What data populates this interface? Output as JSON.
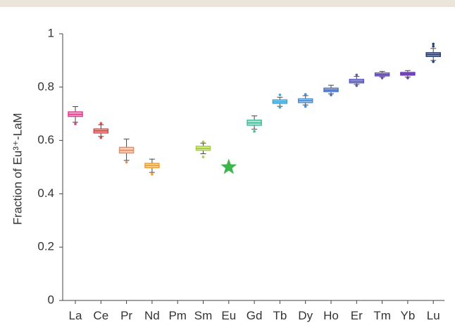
{
  "chart_data": {
    "type": "box",
    "title": "",
    "xlabel": "",
    "ylabel": "Fraction of Eu³⁺-LaM",
    "ylim": [
      0,
      1
    ],
    "yticks": [
      "0",
      "0.2",
      "0.4",
      "0.6",
      "0.8",
      "1"
    ],
    "categories": [
      "La",
      "Ce",
      "Pr",
      "Nd",
      "Pm",
      "Sm",
      "Eu",
      "Gd",
      "Tb",
      "Dy",
      "Ho",
      "Er",
      "Tm",
      "Yb",
      "Lu"
    ],
    "boxes": [
      {
        "category": "La",
        "min": 0.668,
        "q1": 0.69,
        "median": 0.698,
        "q3": 0.707,
        "max": 0.727,
        "outliers": [
          0.662
        ],
        "color": "#e8388c"
      },
      {
        "category": "Ce",
        "min": 0.615,
        "q1": 0.628,
        "median": 0.636,
        "q3": 0.643,
        "max": 0.659,
        "outliers": [
          0.664,
          0.61
        ],
        "color": "#e04848"
      },
      {
        "category": "Pr",
        "min": 0.525,
        "q1": 0.553,
        "median": 0.563,
        "q3": 0.574,
        "max": 0.605,
        "outliers": [
          0.518
        ],
        "color": "#f08a5a"
      },
      {
        "category": "Nd",
        "min": 0.48,
        "q1": 0.498,
        "median": 0.506,
        "q3": 0.514,
        "max": 0.53,
        "outliers": [
          0.473
        ],
        "color": "#f0a030"
      },
      {
        "category": "Sm",
        "min": 0.55,
        "q1": 0.563,
        "median": 0.57,
        "q3": 0.578,
        "max": 0.59,
        "outliers": [
          0.595,
          0.538
        ],
        "color": "#a8cc3a"
      },
      {
        "category": "Gd",
        "min": 0.642,
        "q1": 0.657,
        "median": 0.666,
        "q3": 0.676,
        "max": 0.692,
        "outliers": [
          0.634
        ],
        "color": "#3fbf9a"
      },
      {
        "category": "Tb",
        "min": 0.728,
        "q1": 0.739,
        "median": 0.745,
        "q3": 0.752,
        "max": 0.762,
        "outliers": [
          0.771,
          0.724
        ],
        "color": "#3aa8d8"
      },
      {
        "category": "Dy",
        "min": 0.733,
        "q1": 0.742,
        "median": 0.749,
        "q3": 0.756,
        "max": 0.768,
        "outliers": [
          0.773,
          0.727
        ],
        "color": "#4a90d8"
      },
      {
        "category": "Ho",
        "min": 0.775,
        "q1": 0.783,
        "median": 0.789,
        "q3": 0.796,
        "max": 0.807,
        "outliers": [
          0.77
        ],
        "color": "#4a70c8"
      },
      {
        "category": "Er",
        "min": 0.81,
        "q1": 0.816,
        "median": 0.822,
        "q3": 0.829,
        "max": 0.84,
        "outliers": [
          0.846,
          0.805
        ],
        "color": "#5a5ac0"
      },
      {
        "category": "Tm",
        "min": 0.838,
        "q1": 0.842,
        "median": 0.847,
        "q3": 0.853,
        "max": 0.859,
        "outliers": [
          0.834
        ],
        "color": "#6a50b8"
      },
      {
        "category": "Yb",
        "min": 0.838,
        "q1": 0.845,
        "median": 0.85,
        "q3": 0.855,
        "max": 0.862,
        "outliers": [
          0.834
        ],
        "color": "#6a3ab0"
      },
      {
        "category": "Lu",
        "min": 0.9,
        "q1": 0.915,
        "median": 0.922,
        "q3": 0.929,
        "max": 0.945,
        "outliers": [
          0.953,
          0.962,
          0.895
        ],
        "color": "#283c78"
      }
    ],
    "markers": [
      {
        "category": "Eu",
        "value": 0.5,
        "shape": "star",
        "color": "#3cb54a"
      }
    ],
    "grid": false,
    "legend": "none"
  }
}
